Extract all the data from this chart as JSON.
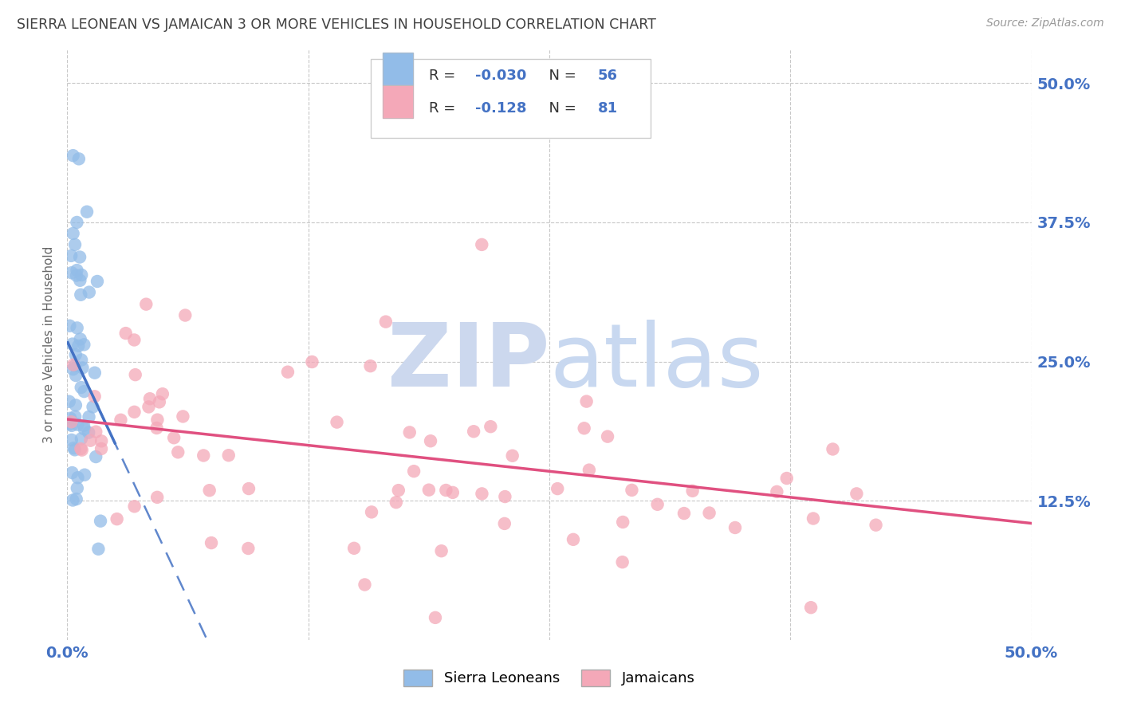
{
  "title": "SIERRA LEONEAN VS JAMAICAN 3 OR MORE VEHICLES IN HOUSEHOLD CORRELATION CHART",
  "source": "Source: ZipAtlas.com",
  "ylabel": "3 or more Vehicles in Household",
  "yticks": [
    "50.0%",
    "37.5%",
    "25.0%",
    "12.5%"
  ],
  "ytick_positions": [
    0.5,
    0.375,
    0.25,
    0.125
  ],
  "xlim": [
    0.0,
    0.5
  ],
  "ylim": [
    0.0,
    0.53
  ],
  "legend_sl_r": "-0.030",
  "legend_sl_n": "56",
  "legend_ja_r": "-0.128",
  "legend_ja_n": "81",
  "sl_color": "#92bce8",
  "ja_color": "#f4a8b8",
  "sl_line_color": "#4472c4",
  "ja_line_color": "#e05080",
  "watermark_zip_color": "#ccd8ee",
  "watermark_atlas_color": "#c8d8f0",
  "background_color": "#ffffff",
  "grid_color": "#c8c8c8",
  "title_color": "#404040",
  "axis_label_color": "#4472c4",
  "legend_text_color_r": "#333333",
  "legend_text_color_n": "#4472c4"
}
